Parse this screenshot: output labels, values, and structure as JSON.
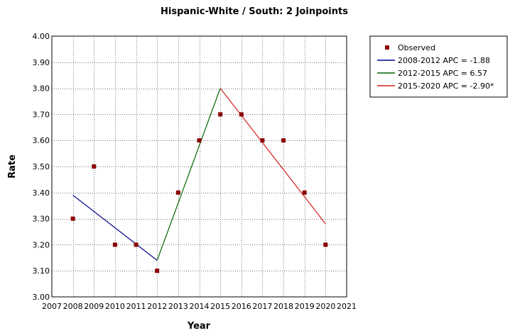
{
  "chart_data": {
    "type": "line",
    "title": "Hispanic-White / South: 2 Joinpoints",
    "xlabel": "Year",
    "ylabel": "Rate",
    "xlim": [
      2007,
      2021
    ],
    "ylim": [
      3.0,
      4.0
    ],
    "x_ticks": [
      2007,
      2008,
      2009,
      2010,
      2011,
      2012,
      2013,
      2014,
      2015,
      2016,
      2017,
      2018,
      2019,
      2020,
      2021
    ],
    "y_ticks": [
      "3.00",
      "3.10",
      "3.20",
      "3.30",
      "3.40",
      "3.50",
      "3.60",
      "3.70",
      "3.80",
      "3.90",
      "4.00"
    ],
    "grid": true,
    "legend_position": "right",
    "observed": {
      "name": "Observed",
      "color": "#8b0000",
      "x": [
        2008,
        2009,
        2010,
        2011,
        2012,
        2013,
        2014,
        2015,
        2016,
        2017,
        2018,
        2019,
        2020
      ],
      "y": [
        3.3,
        3.5,
        3.2,
        3.2,
        3.1,
        3.4,
        3.6,
        3.7,
        3.7,
        3.6,
        3.6,
        3.4,
        3.2
      ]
    },
    "segments": [
      {
        "name": "2008-2012 APC = -1.88",
        "color": "#00008b",
        "x": [
          2008,
          2012
        ],
        "y": [
          3.39,
          3.14
        ]
      },
      {
        "name": "2012-2015 APC = 6.57",
        "color": "#006400",
        "x": [
          2012,
          2015
        ],
        "y": [
          3.14,
          3.8
        ]
      },
      {
        "name": "2015-2020 APC = -2.90*",
        "color": "#d42020",
        "x": [
          2015,
          2020
        ],
        "y": [
          3.8,
          3.28
        ]
      }
    ]
  }
}
